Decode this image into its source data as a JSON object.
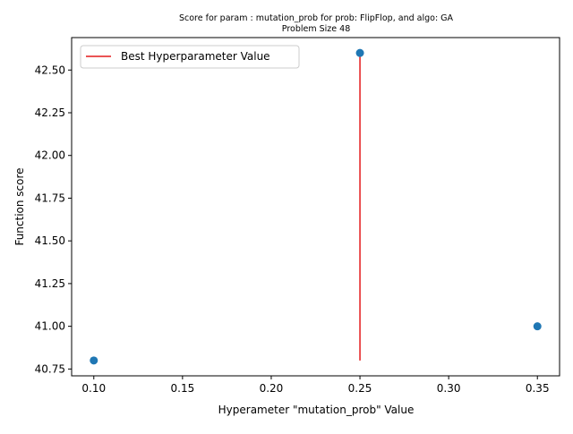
{
  "chart_data": {
    "type": "scatter",
    "title": "Score for param : mutation_prob for prob: FlipFlop, and algo: GA",
    "subtitle": "Problem Size 48",
    "xlabel": "Hyperameter \"mutation_prob\" Value",
    "ylabel": "Function score",
    "xlim": [
      0.0875,
      0.3625
    ],
    "ylim": [
      40.71,
      42.69
    ],
    "x_ticks": [
      0.1,
      0.15,
      0.2,
      0.25,
      0.3,
      0.35
    ],
    "x_tick_labels": [
      "0.10",
      "0.15",
      "0.20",
      "0.25",
      "0.30",
      "0.35"
    ],
    "y_ticks": [
      40.75,
      41.0,
      41.25,
      41.5,
      41.75,
      42.0,
      42.25,
      42.5
    ],
    "y_tick_labels": [
      "40.75",
      "41.00",
      "41.25",
      "41.50",
      "41.75",
      "42.00",
      "42.25",
      "42.50"
    ],
    "grid": false,
    "legend_position": "top-left",
    "series": [
      {
        "type": "scatter",
        "color": "#1f77b4",
        "points": [
          {
            "x": 0.1,
            "y": 40.8
          },
          {
            "x": 0.25,
            "y": 42.6
          },
          {
            "x": 0.35,
            "y": 41.0
          }
        ]
      }
    ],
    "best_line": {
      "name": "Best Hyperparameter Value",
      "color": "#e41a1c",
      "x": 0.25,
      "y_from": 40.8,
      "y_to": 42.6
    }
  }
}
